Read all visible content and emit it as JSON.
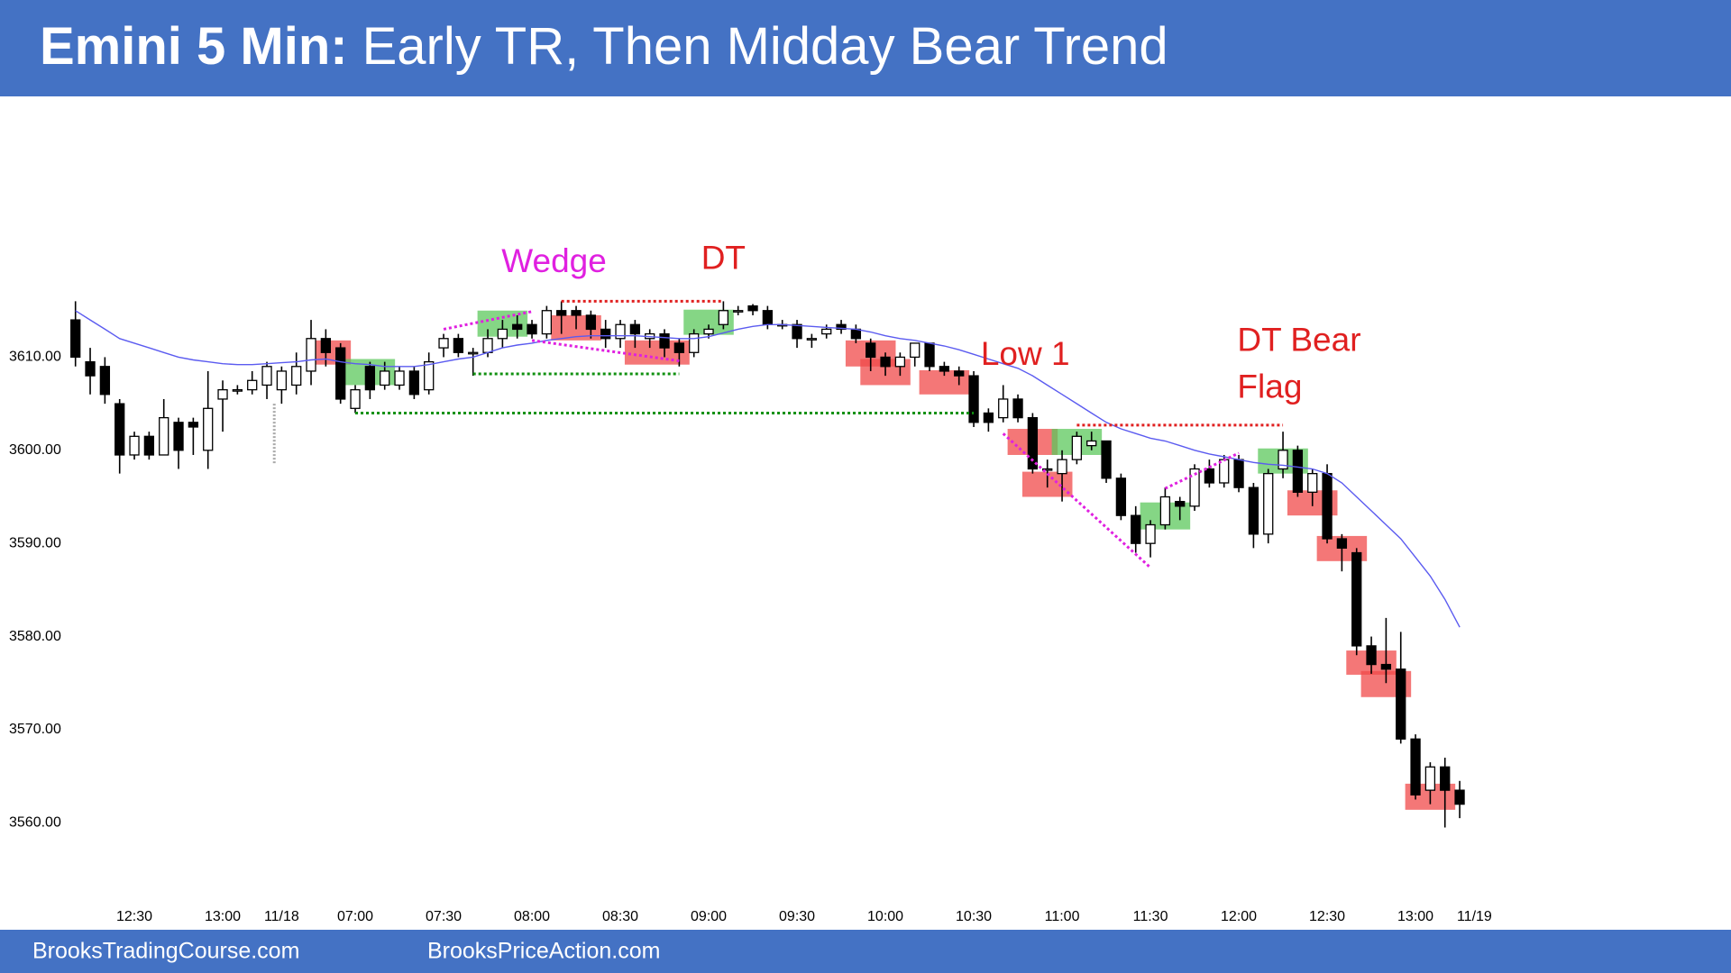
{
  "chart_data": {
    "type": "candlestick",
    "title_lead": "Emini 5 Min:",
    "title": "Early TR, Then Midday Bear Trend",
    "footer": [
      "BrooksTradingCourse.com",
      "BrooksPriceAction.com"
    ],
    "open": [
      3614,
      3609.5,
      3609,
      3605,
      3599.5,
      3601.5,
      3599.5,
      3603,
      3603,
      3600,
      3605.5,
      3606.5,
      3606.5,
      3607,
      3606.5,
      3607,
      3608.5,
      3612,
      3611,
      3604.5,
      3609,
      3607,
      3607,
      3608.5,
      3606.5,
      3611,
      3612,
      3610.5,
      3610.5,
      3612,
      3613.5,
      3613.5,
      3612.5,
      3615,
      3615,
      3614.5,
      3613,
      3612,
      3613.5,
      3612,
      3612.5,
      3611.5,
      3610.5,
      3612.5,
      3613.5,
      3615,
      3615.5,
      3615,
      3613.5,
      3613.5,
      3612,
      3612.5,
      3613.5,
      3613,
      3611.5,
      3610,
      3609,
      3610,
      3611.5,
      3609,
      3608.5,
      3608,
      3604,
      3603.5,
      3605.5,
      3603.5,
      3598,
      3597.5,
      3599,
      3600.5,
      3601,
      3597,
      3593,
      3590,
      3592,
      3594.5,
      3594,
      3598,
      3596.5,
      3599,
      3596,
      3591,
      3598,
      3600,
      3595.5,
      3597.5,
      3590.5,
      3589,
      3579,
      3577,
      3576.5,
      3569,
      3563.5,
      3566,
      3563.5
    ],
    "high": [
      3616,
      3611,
      3610,
      3605.5,
      3602,
      3602,
      3605.5,
      3603.5,
      3603.5,
      3608.5,
      3607.5,
      3607,
      3608.5,
      3609.5,
      3609,
      3610.5,
      3614,
      3613,
      3611.5,
      3607,
      3609.5,
      3609.5,
      3609,
      3609,
      3610.5,
      3612.5,
      3612.5,
      3611,
      3613,
      3614,
      3614.5,
      3614,
      3615.5,
      3616,
      3615.5,
      3615,
      3614,
      3614,
      3614,
      3613,
      3613,
      3612,
      3613,
      3613.5,
      3616,
      3615.5,
      3615.7,
      3615.5,
      3614,
      3614,
      3612.5,
      3613.5,
      3614,
      3613.5,
      3612,
      3610.5,
      3610.5,
      3611.5,
      3611.5,
      3609.5,
      3609,
      3608.5,
      3604.5,
      3607,
      3606,
      3604,
      3599,
      3600,
      3602,
      3602,
      3601,
      3597.5,
      3594,
      3592.5,
      3596,
      3595,
      3598.5,
      3599,
      3599.5,
      3599.5,
      3596.5,
      3598,
      3602,
      3600.5,
      3598,
      3598.5,
      3591,
      3589.5,
      3580,
      3582,
      3580.5,
      3569.5,
      3566.5,
      3567,
      3564.5
    ],
    "low": [
      3609,
      3606,
      3605,
      3597.5,
      3599,
      3599,
      3599.5,
      3598,
      3599.5,
      3598,
      3602,
      3606,
      3606,
      3605.5,
      3605,
      3606,
      3607,
      3609,
      3605,
      3604,
      3605.5,
      3606.5,
      3606.5,
      3605.5,
      3606,
      3610,
      3610,
      3608,
      3610,
      3611,
      3612,
      3612,
      3612,
      3612.5,
      3613,
      3612,
      3611,
      3611,
      3611,
      3611,
      3610,
      3609,
      3610,
      3612,
      3613,
      3614.5,
      3614.5,
      3613,
      3613,
      3611,
      3611,
      3612,
      3612.5,
      3611.5,
      3608.5,
      3608,
      3608,
      3609,
      3608.5,
      3608,
      3607,
      3602.5,
      3602,
      3603,
      3603,
      3597.5,
      3596,
      3594.5,
      3598.5,
      3600,
      3596.5,
      3592.5,
      3589,
      3588.5,
      3591.5,
      3592.5,
      3593.5,
      3596,
      3596,
      3595.5,
      3589.5,
      3590,
      3597,
      3595,
      3594,
      3590,
      3587,
      3578,
      3576,
      3575,
      3568.5,
      3562.5,
      3562,
      3559.5,
      3560.5
    ],
    "close": [
      3610,
      3608,
      3606,
      3599.5,
      3601.5,
      3599.5,
      3603.5,
      3600,
      3602.5,
      3604.5,
      3606.5,
      3606.5,
      3607.5,
      3609,
      3608.5,
      3609,
      3612,
      3610.5,
      3605.5,
      3606.5,
      3606.5,
      3608.5,
      3608.5,
      3606,
      3609.5,
      3612,
      3610.5,
      3610.5,
      3612,
      3613,
      3613,
      3612.5,
      3615,
      3614.5,
      3614.5,
      3613,
      3612,
      3613.5,
      3612.5,
      3612.5,
      3611,
      3610.5,
      3612.5,
      3613,
      3615,
      3615,
      3615,
      3613.5,
      3613.5,
      3612,
      3612,
      3613,
      3613,
      3612,
      3610,
      3609,
      3610,
      3611.5,
      3609,
      3608.5,
      3608,
      3603,
      3603,
      3605.5,
      3603.5,
      3598,
      3598,
      3599,
      3601.5,
      3601,
      3597,
      3593,
      3590,
      3592,
      3595,
      3594,
      3598,
      3596.5,
      3599,
      3596,
      3591,
      3597.5,
      3600,
      3595.5,
      3597.5,
      3590.5,
      3589.5,
      3579,
      3577,
      3576.5,
      3569,
      3563,
      3566,
      3563.5,
      3562
    ],
    "ema": [
      3615,
      3614,
      3613,
      3612,
      3611.5,
      3611,
      3610.5,
      3610,
      3609.7,
      3609.5,
      3609.3,
      3609.2,
      3609.2,
      3609.3,
      3609.4,
      3609.5,
      3609.7,
      3609.8,
      3609.5,
      3609.3,
      3609.2,
      3609,
      3609,
      3609,
      3609.2,
      3609.5,
      3609.8,
      3610,
      3610.5,
      3611,
      3611.3,
      3611.5,
      3611.8,
      3612,
      3612.2,
      3612.3,
      3612.3,
      3612.3,
      3612.3,
      3612.2,
      3612.1,
      3612,
      3612,
      3612.2,
      3612.6,
      3613,
      3613.3,
      3613.5,
      3613.5,
      3613.4,
      3613.3,
      3613.2,
      3613.1,
      3613,
      3612.7,
      3612.3,
      3612,
      3611.8,
      3611.5,
      3611.2,
      3610.8,
      3610.3,
      3609.8,
      3609.3,
      3608.8,
      3608,
      3607,
      3606,
      3605,
      3604,
      3603,
      3602.3,
      3601.8,
      3601.3,
      3601,
      3600.5,
      3600,
      3599.6,
      3599.3,
      3599,
      3598.7,
      3598.5,
      3598.4,
      3598.2,
      3598,
      3597.5,
      3596.5,
      3595,
      3593.5,
      3592,
      3590.5,
      3588.5,
      3586.5,
      3584,
      3581
    ],
    "ema_color": "#5b5bf0",
    "bull_color": "#ffffff",
    "bear_color": "#000000",
    "boxes": [
      {
        "from": 17,
        "to": 18,
        "low": 3609.2,
        "high": 3611.8,
        "color": "#f04a4a"
      },
      {
        "from": 33,
        "to": 35,
        "low": 3611.8,
        "high": 3614.5,
        "color": "#f04a4a"
      },
      {
        "from": 38,
        "to": 41,
        "low": 3609.2,
        "high": 3611.8,
        "color": "#f04a4a"
      },
      {
        "from": 53,
        "to": 55,
        "low": 3609,
        "high": 3611.8,
        "color": "#f04a4a"
      },
      {
        "from": 54,
        "to": 56,
        "low": 3607,
        "high": 3609.8,
        "color": "#f04a4a"
      },
      {
        "from": 58,
        "to": 60,
        "low": 3606,
        "high": 3608.6,
        "color": "#f04a4a"
      },
      {
        "from": 64,
        "to": 66,
        "low": 3599.5,
        "high": 3602.3,
        "color": "#f04a4a"
      },
      {
        "from": 65,
        "to": 67,
        "low": 3595,
        "high": 3597.7,
        "color": "#f04a4a"
      },
      {
        "from": 83,
        "to": 85,
        "low": 3593,
        "high": 3595.7,
        "color": "#f04a4a"
      },
      {
        "from": 85,
        "to": 87,
        "low": 3588.1,
        "high": 3590.8,
        "color": "#f04a4a"
      },
      {
        "from": 87,
        "to": 89,
        "low": 3575.9,
        "high": 3578.5,
        "color": "#f04a4a"
      },
      {
        "from": 88,
        "to": 90,
        "low": 3573.5,
        "high": 3576.3,
        "color": "#f04a4a"
      },
      {
        "from": 91,
        "to": 93,
        "low": 3561.4,
        "high": 3564.2,
        "color": "#f04a4a"
      },
      {
        "from": 19,
        "to": 21,
        "low": 3607,
        "high": 3609.8,
        "color": "#5cc85c"
      },
      {
        "from": 28,
        "to": 30,
        "low": 3612.2,
        "high": 3615,
        "color": "#5cc85c"
      },
      {
        "from": 42,
        "to": 44,
        "low": 3612.4,
        "high": 3615.1,
        "color": "#5cc85c"
      },
      {
        "from": 67,
        "to": 69,
        "low": 3599.5,
        "high": 3602.3,
        "color": "#5cc85c"
      },
      {
        "from": 73,
        "to": 75,
        "low": 3591.5,
        "high": 3594.4,
        "color": "#5cc85c"
      },
      {
        "from": 81,
        "to": 83,
        "low": 3597.5,
        "high": 3600.2,
        "color": "#5cc85c"
      }
    ],
    "levels": [
      {
        "from": 33,
        "to": 44,
        "value": 3616,
        "color": "#e02020"
      },
      {
        "from": 27,
        "to": 41,
        "value": 3608.2,
        "color": "#109010"
      },
      {
        "from": 19,
        "to": 61,
        "value": 3604,
        "color": "#109010"
      },
      {
        "from": 68,
        "to": 82,
        "value": 3602.7,
        "color": "#e02020"
      }
    ],
    "trendlines": [
      {
        "x": [
          25,
          31
        ],
        "y": [
          3613,
          3614.9
        ],
        "color": "#e020e0"
      },
      {
        "x": [
          31,
          41
        ],
        "y": [
          3611.8,
          3609.6
        ],
        "color": "#e020e0"
      },
      {
        "x": [
          63,
          73
        ],
        "y": [
          3601.8,
          3587.4
        ],
        "color": "#e020e0"
      },
      {
        "x": [
          74,
          79
        ],
        "y": [
          3595.9,
          3599.7
        ],
        "color": "#e020e0"
      }
    ],
    "annotations": [
      {
        "text": "Wedge",
        "color": "#e020e0"
      },
      {
        "text": "DT",
        "color": "#e02020"
      },
      {
        "text": "Low 1",
        "color": "#e02020"
      },
      {
        "text": "DT Bear",
        "color": "#e02020"
      },
      {
        "text": "Flag",
        "color": "#e02020"
      }
    ],
    "xlim": [
      -3.9,
      111.2
    ],
    "ylim": [
      3552,
      3638
    ],
    "yticks": [
      {
        "value": 3560,
        "label": "3560.00"
      },
      {
        "value": 3570,
        "label": "3570.00"
      },
      {
        "value": 3580,
        "label": "3580.00"
      },
      {
        "value": 3590,
        "label": "3590.00"
      },
      {
        "value": 3600,
        "label": "3600.00"
      },
      {
        "value": 3610,
        "label": "3610.00"
      }
    ],
    "xticks": [
      {
        "value": 4,
        "label": "12:30"
      },
      {
        "value": 10,
        "label": "13:00"
      },
      {
        "value": 14,
        "label": "11/18"
      },
      {
        "value": 19,
        "label": "07:00"
      },
      {
        "value": 25,
        "label": "07:30"
      },
      {
        "value": 31,
        "label": "08:00"
      },
      {
        "value": 37,
        "label": "08:30"
      },
      {
        "value": 43,
        "label": "09:00"
      },
      {
        "value": 49,
        "label": "09:30"
      },
      {
        "value": 55,
        "label": "10:00"
      },
      {
        "value": 61,
        "label": "10:30"
      },
      {
        "value": 67,
        "label": "11:00"
      },
      {
        "value": 73,
        "label": "11:30"
      },
      {
        "value": 79,
        "label": "12:00"
      },
      {
        "value": 85,
        "label": "12:30"
      },
      {
        "value": 91,
        "label": "13:00"
      },
      {
        "value": 95,
        "label": "11/19"
      }
    ]
  }
}
